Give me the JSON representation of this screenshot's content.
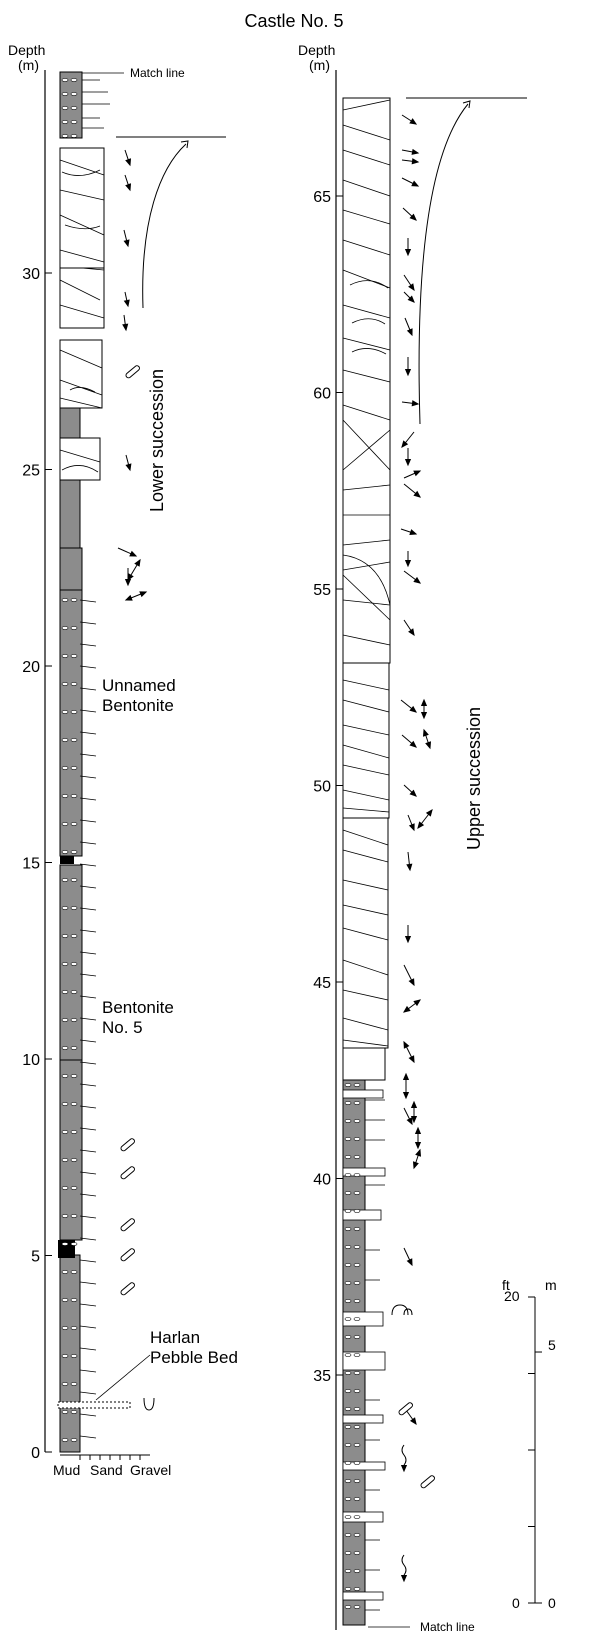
{
  "title": "Castle No. 5",
  "left_column": {
    "depth_label": "Depth",
    "unit_label": "(m)",
    "ticks": [
      "0",
      "5",
      "10",
      "15",
      "20",
      "25",
      "30"
    ],
    "match_line_label": "Match line",
    "succession_label": "Lower succession",
    "grain_size_labels": [
      "Mud",
      "Sand",
      "Gravel"
    ],
    "annotations": {
      "unnamed_bentonite": [
        "Unnamed",
        "Bentonite"
      ],
      "bentonite_no5": [
        "Bentonite",
        "No. 5"
      ],
      "harlan": [
        "Harlan",
        "Pebble Bed"
      ]
    }
  },
  "right_column": {
    "depth_label": "Depth",
    "unit_label": "(m)",
    "ticks": [
      "35",
      "40",
      "45",
      "50",
      "55",
      "60",
      "65"
    ],
    "match_line_label": "Match line",
    "succession_label": "Upper succession"
  },
  "scale_bar": {
    "ft_label": "ft",
    "m_label": "m",
    "ft_ticks": [
      "0",
      "20"
    ],
    "m_ticks": [
      "0",
      "5"
    ]
  },
  "colors": {
    "mudstone": "#8c8c8c",
    "bentonite": "#000000",
    "sandstone": "#ffffff",
    "line": "#000000"
  },
  "icons": [
    "paleocurrent-arrow-icon",
    "bidirectional-arrow-icon",
    "burrow-icon",
    "trace-fossil-icon",
    "shell-icon",
    "fining-upward-arrow-icon"
  ]
}
